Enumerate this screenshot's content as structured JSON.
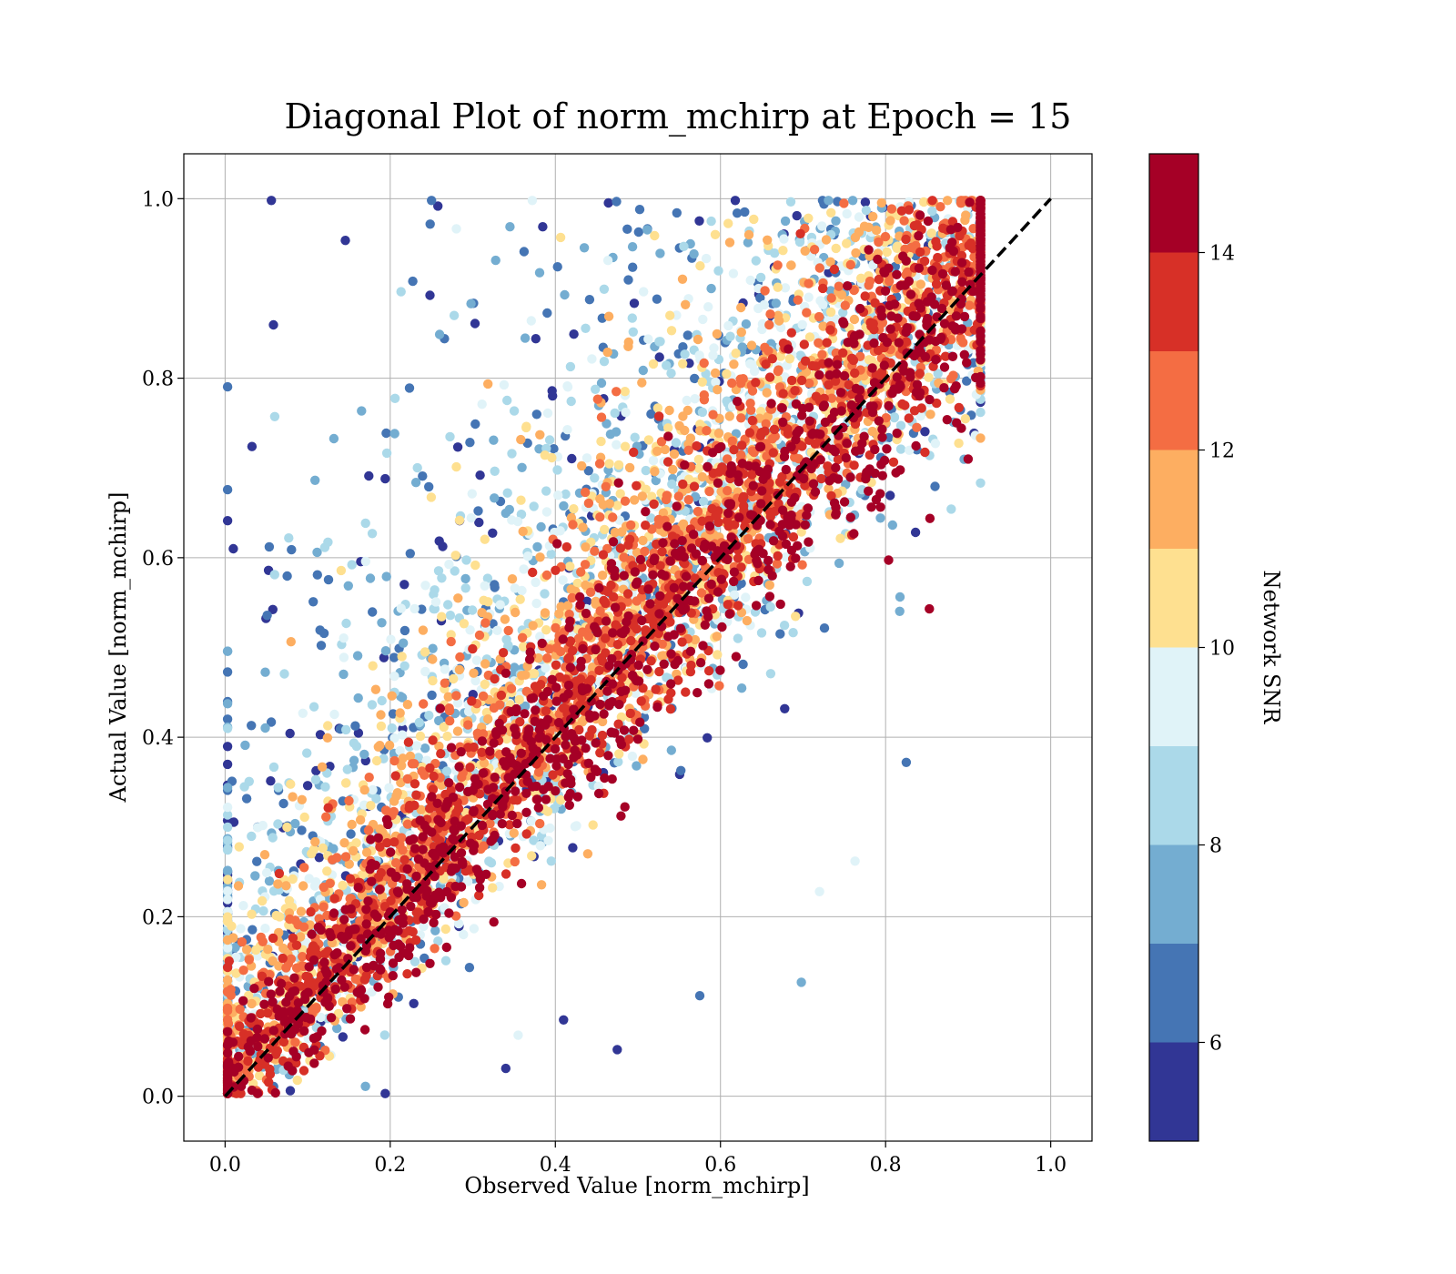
{
  "chart_data": {
    "type": "scatter",
    "title": "Diagonal Plot of norm_mchirp at Epoch = 15",
    "xlabel": "Observed Value [norm_mchirp]",
    "ylabel": "Actual Value [norm_mchirp]",
    "xlim": [
      -0.05,
      1.05
    ],
    "ylim": [
      -0.05,
      1.05
    ],
    "xticks": [
      "0.0",
      "0.2",
      "0.4",
      "0.6",
      "0.8",
      "1.0"
    ],
    "yticks": [
      "0.0",
      "0.2",
      "0.4",
      "0.6",
      "0.8",
      "1.0"
    ],
    "xtick_values": [
      0.0,
      0.2,
      0.4,
      0.6,
      0.8,
      1.0
    ],
    "ytick_values": [
      0.0,
      0.2,
      0.4,
      0.6,
      0.8,
      1.0
    ],
    "grid": true,
    "reference_line": {
      "style": "dashed",
      "color": "#000000",
      "from": [
        0.0,
        0.0
      ],
      "to": [
        1.0,
        1.0
      ]
    },
    "colorbar": {
      "label": "Network SNR",
      "range": [
        5,
        15
      ],
      "boundaries": [
        5,
        6,
        7,
        8,
        9,
        10,
        11,
        12,
        13,
        14,
        15
      ],
      "ticks": [
        "6",
        "8",
        "10",
        "12",
        "14"
      ],
      "tick_values": [
        6,
        8,
        10,
        12,
        14
      ],
      "colors": [
        "#313695",
        "#4575b4",
        "#74add1",
        "#abd9e9",
        "#e0f3f8",
        "#fee090",
        "#fdae61",
        "#f46d43",
        "#d73027",
        "#a50026"
      ]
    },
    "point_cloud": {
      "description_values": "dense scatter of predictions vs truth; high-SNR points cluster tightly along the diagonal, low-SNR points spread widely above it",
      "x_range": [
        0.0,
        0.92
      ],
      "y_range": [
        0.0,
        1.0
      ],
      "outliers": [
        {
          "x": 0.825,
          "y": 0.372,
          "snr": 6.5
        },
        {
          "x": 0.698,
          "y": 0.127,
          "snr": 7.5
        },
        {
          "x": 0.475,
          "y": 0.052,
          "snr": 5.5
        },
        {
          "x": 0.34,
          "y": 0.031,
          "snr": 5.5
        },
        {
          "x": 0.056,
          "y": 0.998,
          "snr": 5.5
        },
        {
          "x": 0.25,
          "y": 0.998,
          "snr": 6.5
        },
        {
          "x": 0.01,
          "y": 0.61,
          "snr": 5.5
        },
        {
          "x": 0.9,
          "y": 0.71,
          "snr": 14.5
        },
        {
          "x": 0.853,
          "y": 0.543,
          "snr": 14.5
        },
        {
          "x": 0.575,
          "y": 0.112,
          "snr": 6.5
        },
        {
          "x": 0.763,
          "y": 0.262,
          "snr": 9.5
        },
        {
          "x": 0.72,
          "y": 0.228,
          "snr": 9.5
        },
        {
          "x": 0.17,
          "y": 0.011,
          "snr": 7.5
        },
        {
          "x": 0.355,
          "y": 0.068,
          "snr": 9.5
        },
        {
          "x": 0.41,
          "y": 0.085,
          "snr": 5.5
        }
      ]
    }
  }
}
